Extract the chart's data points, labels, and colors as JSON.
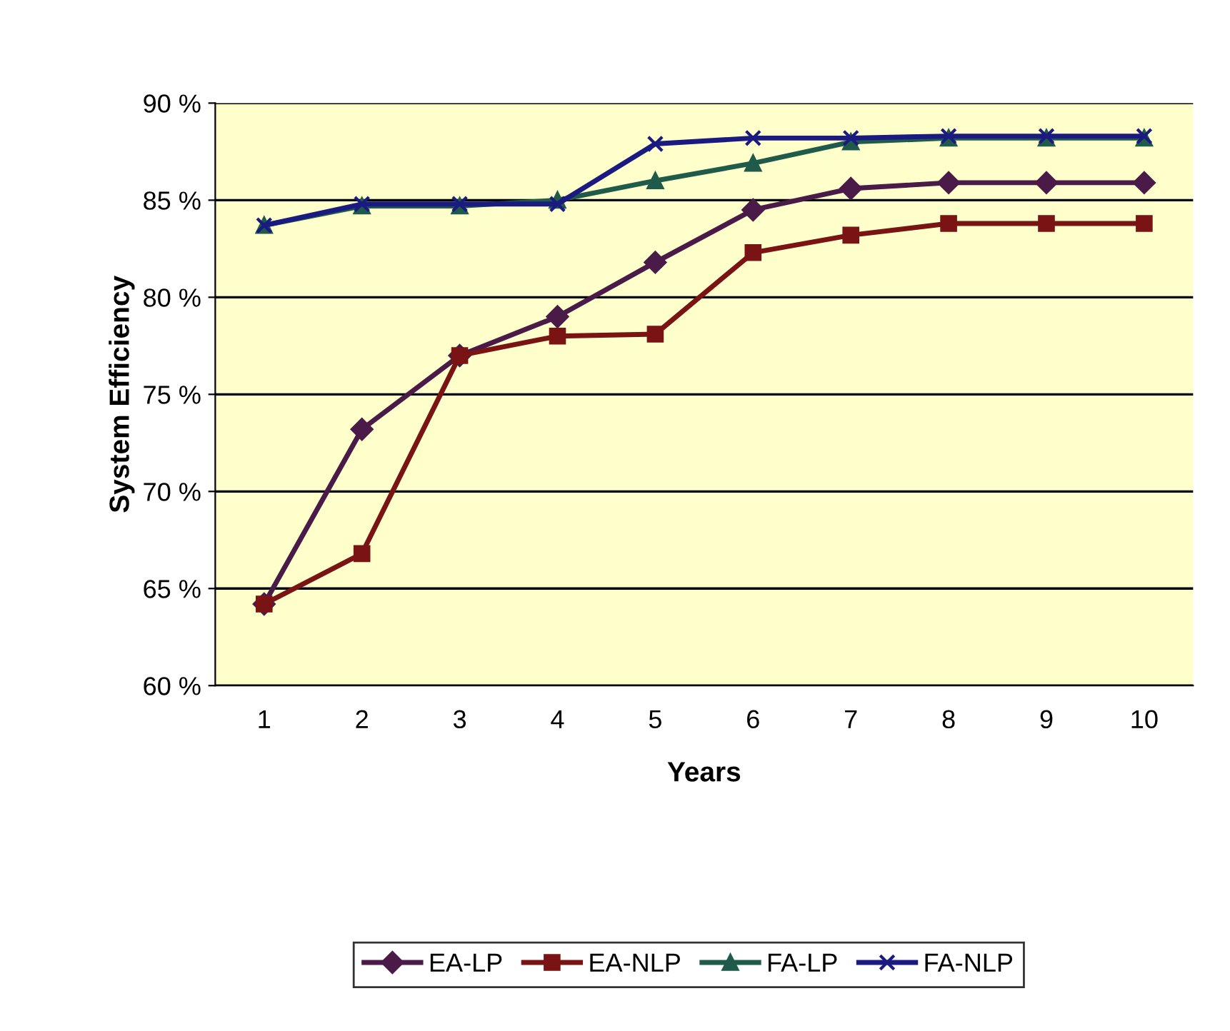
{
  "chart_data": {
    "type": "line",
    "xlabel": "Years",
    "ylabel": "System Efficiency",
    "categories": [
      "1",
      "2",
      "3",
      "4",
      "5",
      "6",
      "7",
      "8",
      "9",
      "10"
    ],
    "series": [
      {
        "name": "EA-LP",
        "color": "#4a1a48",
        "marker": "diamond",
        "values": [
          64.2,
          73.2,
          77.0,
          79.0,
          81.8,
          84.5,
          85.6,
          85.9,
          85.9,
          85.9
        ]
      },
      {
        "name": "EA-NLP",
        "color": "#7a1414",
        "marker": "square",
        "values": [
          64.2,
          66.8,
          77.0,
          78.0,
          78.1,
          82.3,
          83.2,
          83.8,
          83.8,
          83.8
        ]
      },
      {
        "name": "FA-LP",
        "color": "#1f5a4a",
        "marker": "triangle",
        "values": [
          83.7,
          84.7,
          84.7,
          85.0,
          86.0,
          86.9,
          88.0,
          88.2,
          88.2,
          88.2
        ]
      },
      {
        "name": "FA-NLP",
        "color": "#1a1a80",
        "marker": "cross",
        "values": [
          83.7,
          84.8,
          84.8,
          84.8,
          87.9,
          88.2,
          88.2,
          88.3,
          88.3,
          88.3
        ]
      }
    ],
    "ylim": [
      60,
      90
    ],
    "yticks": [
      {
        "value": 60,
        "label": "60 %"
      },
      {
        "value": 65,
        "label": "65 %"
      },
      {
        "value": 70,
        "label": "70 %"
      },
      {
        "value": 75,
        "label": "75 %"
      },
      {
        "value": 80,
        "label": "80 %"
      },
      {
        "value": 85,
        "label": "85 %"
      },
      {
        "value": 90,
        "label": "90 %"
      }
    ],
    "grid": "y",
    "legend": "bottom",
    "line_style": "solid"
  }
}
